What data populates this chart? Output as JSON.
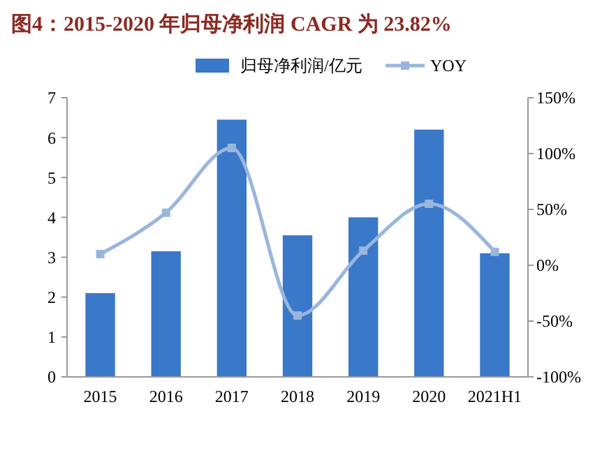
{
  "chart_data": {
    "type": "bar",
    "title": "图4：2015-2020 年归母净利润 CAGR 为 23.82%",
    "categories": [
      "2015",
      "2016",
      "2017",
      "2018",
      "2019",
      "2020",
      "2021H1"
    ],
    "series": [
      {
        "name": "归母净利润/亿元",
        "color": "#3a78c9",
        "values": [
          2.1,
          3.15,
          6.45,
          3.55,
          4.0,
          6.2,
          3.1
        ]
      },
      {
        "name": "YOY",
        "type": "line",
        "axis": "y2",
        "color": "#9ab6dc",
        "values": [
          10,
          47,
          105,
          -45,
          13,
          55,
          12
        ]
      }
    ],
    "ylim": [
      0,
      7
    ],
    "yticks": [
      0,
      1,
      2,
      3,
      4,
      5,
      6,
      7
    ],
    "y2lim": [
      -100,
      150
    ],
    "y2ticks": [
      {
        "value": -100,
        "label": "-100%"
      },
      {
        "value": -50,
        "label": "-50%"
      },
      {
        "value": 0,
        "label": "0%"
      },
      {
        "value": 50,
        "label": "50%"
      },
      {
        "value": 100,
        "label": "100%"
      },
      {
        "value": 150,
        "label": "150%"
      }
    ],
    "legend": "top",
    "marker": "square",
    "grid": false
  }
}
